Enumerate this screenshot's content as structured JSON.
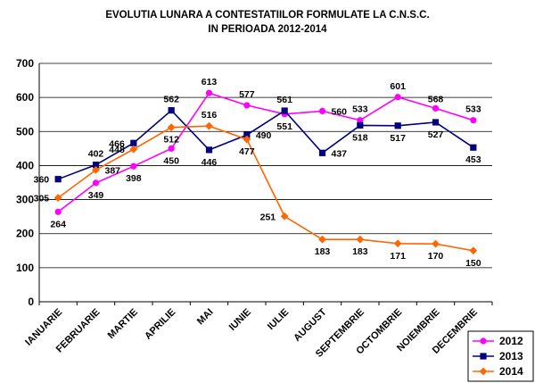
{
  "chart_data": {
    "type": "line",
    "title": "EVOLUTIA LUNARA A CONTESTATIILOR FORMULATE LA C.N.S.C.",
    "subtitle": "IN PERIOADA 2012-2014",
    "xlabel": "",
    "ylabel": "",
    "ylim": [
      0,
      700
    ],
    "yticks": [
      "0",
      "100",
      "200",
      "300",
      "400",
      "500",
      "600",
      "700"
    ],
    "grid": true,
    "legend_position": "bottom-right",
    "categories": [
      "IANUARIE",
      "FEBRUARIE",
      "MARTIE",
      "APRILIE",
      "MAI",
      "IUNIE",
      "IULIE",
      "AUGUST",
      "SEPTEMBRIE",
      "OCTOMBRIE",
      "NOIEMBRIE",
      "DECEMBRIE"
    ],
    "series": [
      {
        "name": "2012",
        "color": "#ff00ff",
        "marker": "circle",
        "values": [
          264,
          349,
          398,
          450,
          613,
          577,
          551,
          560,
          533,
          601,
          568,
          533
        ]
      },
      {
        "name": "2013",
        "color": "#000080",
        "marker": "square",
        "values": [
          360,
          402,
          466,
          562,
          446,
          490,
          561,
          437,
          518,
          517,
          527,
          453
        ]
      },
      {
        "name": "2014",
        "color": "#ff6600",
        "marker": "diamond",
        "values": [
          305,
          387,
          448,
          512,
          516,
          477,
          251,
          183,
          183,
          171,
          170,
          150
        ]
      }
    ]
  }
}
